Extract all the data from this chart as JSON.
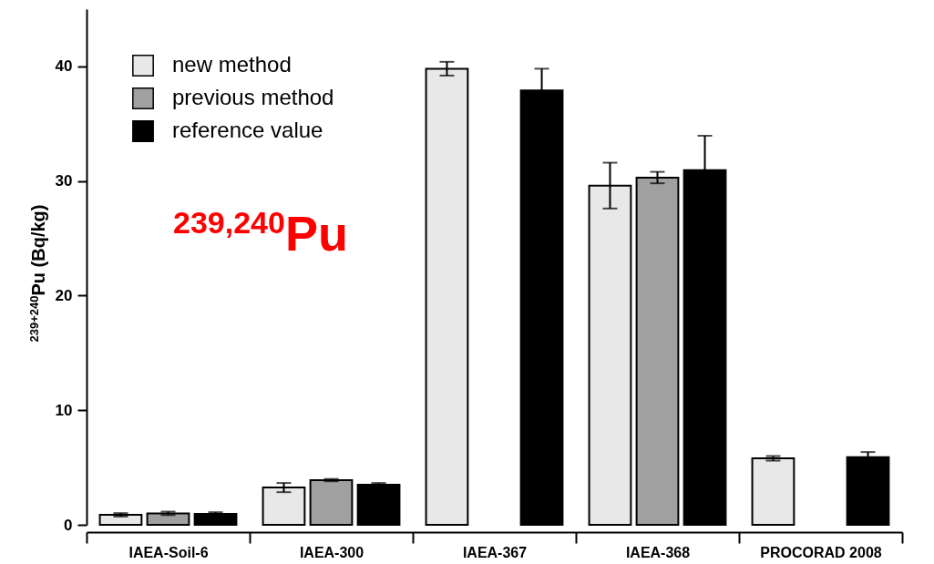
{
  "chart_data": {
    "type": "bar",
    "ylabel": "$^{239+240}$Pu (Bq/kg)",
    "annotations": [
      "$^{239,240}$Pu"
    ],
    "categories": [
      "IAEA-Soil-6",
      "IAEA-300",
      "IAEA-367",
      "IAEA-368",
      "PROCORAD 2008"
    ],
    "series": [
      {
        "name": "new method",
        "color": "#e8e8e8",
        "values": [
          0.87,
          3.25,
          39.8,
          29.6,
          5.8
        ],
        "errors": [
          0.15,
          0.4,
          0.6,
          2.0,
          0.2
        ]
      },
      {
        "name": "previous method",
        "color": "#a0a0a0",
        "values": [
          1.0,
          3.9,
          null,
          30.3,
          null
        ],
        "errors": [
          0.15,
          0.1,
          null,
          0.5,
          null
        ]
      },
      {
        "name": "reference value",
        "color": "#000000",
        "values": [
          0.95,
          3.5,
          37.9,
          30.95,
          5.9
        ],
        "errors": [
          0.15,
          0.15,
          1.9,
          3.0,
          0.45
        ]
      }
    ],
    "ylim": [
      0,
      45
    ],
    "yticks": [
      0,
      10,
      20,
      30,
      40
    ],
    "grid": false,
    "legend": "top left"
  }
}
